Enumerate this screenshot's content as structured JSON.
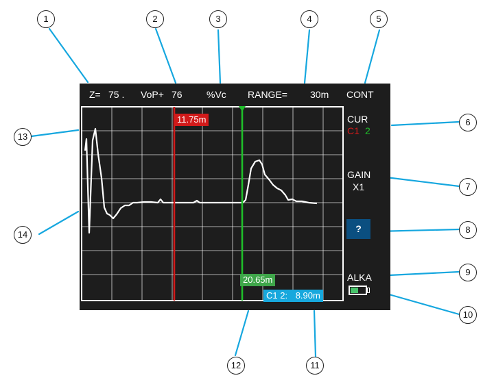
{
  "header": {
    "z_label": "Z=",
    "z_value": "75 .",
    "vop_label": "VoP+",
    "vop_value": "76",
    "vop_unit": "%Vc",
    "range_label": "RANGE=",
    "range_value": "30m",
    "mode": "CONT"
  },
  "sidebar": {
    "cursor_label": "CUR",
    "cursor_1": "C1",
    "cursor_2": "2",
    "gain_label": "GAIN",
    "gain_value": "X1",
    "help_label": "?",
    "battery_label": "ALKA",
    "battery_level": 0.5
  },
  "cursors": {
    "cursor1_distance": "11.75m",
    "cursor2_distance": "20.65m",
    "delta_label": "C1 2:",
    "delta_value": "8.90m"
  },
  "callouts": [
    "1",
    "2",
    "3",
    "4",
    "5",
    "6",
    "7",
    "8",
    "9",
    "10",
    "11",
    "12",
    "13",
    "14"
  ],
  "colors": {
    "screen_bg": "#1d1d1d",
    "cursor1": "#d11a1a",
    "cursor2": "#1fbf2a",
    "delta_tag": "#17a8dd",
    "leader": "#16a7df"
  }
}
